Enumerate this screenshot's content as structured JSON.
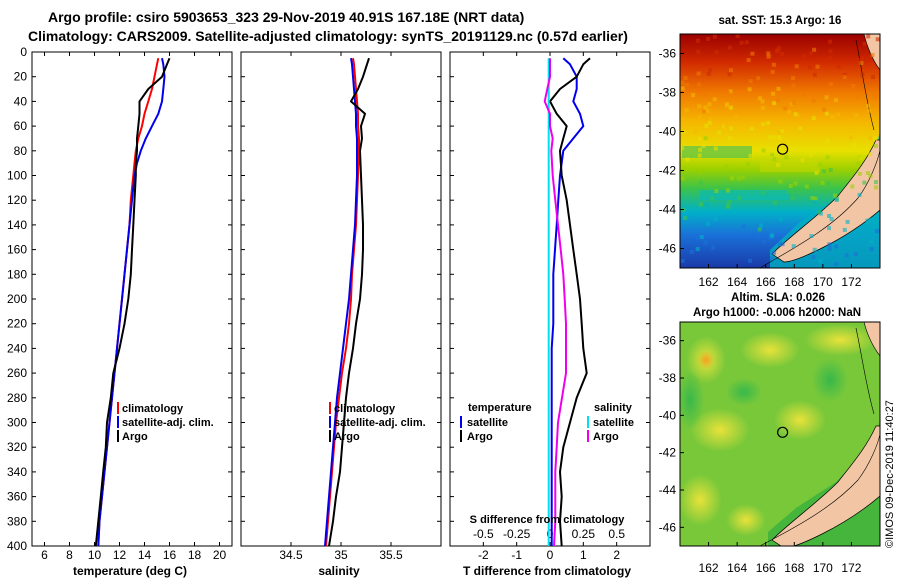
{
  "title": {
    "line1": "Argo profile: csiro 5903653_323 29-Nov-2019 40.91S 167.18E (NRT data)",
    "line2": "Climatology: CARS2009. Satellite-adjusted climatology: synTS_20191129.nc (0.57d earlier)"
  },
  "credit": "©IMOS 09-Dec-2019 11:40:27",
  "colors": {
    "climatology": "#ff0000",
    "satellite": "#0000ee",
    "argo": "#000000",
    "sal_satellite": "#00e0ee",
    "sal_argo": "#ee00ee",
    "land": "#f2c6a4"
  },
  "chart_data": [
    {
      "type": "line",
      "name": "temperature",
      "xlabel": "temperature (deg C)",
      "xlim": [
        5,
        21
      ],
      "ylim": [
        0,
        400
      ],
      "xticks": [
        "6",
        "8",
        "10",
        "12",
        "14",
        "16",
        "18",
        "20"
      ],
      "xtick_values": [
        6,
        8,
        10,
        12,
        14,
        16,
        18,
        20
      ],
      "yticks": [
        "0",
        "20",
        "40",
        "60",
        "80",
        "100",
        "120",
        "140",
        "160",
        "180",
        "200",
        "220",
        "240",
        "260",
        "280",
        "300",
        "320",
        "340",
        "360",
        "380",
        "400"
      ],
      "legend": [
        "climatology",
        "satellite-adj. clim.",
        "Argo"
      ],
      "depth": [
        5,
        10,
        20,
        30,
        40,
        50,
        60,
        70,
        80,
        90,
        100,
        120,
        140,
        160,
        180,
        200,
        220,
        240,
        260,
        280,
        300,
        320,
        340,
        360,
        380,
        400
      ],
      "series": [
        {
          "name": "climatology",
          "color": "#ff0000",
          "values": [
            15.1,
            15.0,
            14.8,
            14.6,
            14.3,
            14.0,
            13.8,
            13.5,
            13.3,
            13.2,
            13.1,
            12.9,
            12.8,
            12.6,
            12.4,
            12.2,
            12.0,
            11.8,
            11.6,
            11.4,
            11.2,
            11.0,
            10.8,
            10.6,
            10.4,
            10.3
          ]
        },
        {
          "name": "satellite-adj. clim.",
          "color": "#0000ee",
          "values": [
            15.4,
            15.5,
            15.6,
            15.5,
            15.4,
            15.1,
            14.6,
            14.1,
            13.7,
            13.4,
            13.2,
            13.0,
            12.8,
            12.6,
            12.4,
            12.2,
            12.0,
            11.8,
            11.6,
            11.4,
            11.2,
            11.0,
            10.8,
            10.6,
            10.4,
            10.3
          ]
        },
        {
          "name": "Argo",
          "color": "#000000",
          "values": [
            16.0,
            15.8,
            15.4,
            14.3,
            13.6,
            13.6,
            13.5,
            13.4,
            13.4,
            13.3,
            13.3,
            13.2,
            13.1,
            13.0,
            12.9,
            12.7,
            12.4,
            12.0,
            11.5,
            11.3,
            11.0,
            10.9,
            10.7,
            10.5,
            10.3,
            10.1
          ]
        }
      ]
    },
    {
      "type": "line",
      "name": "salinity",
      "xlabel": "salinity",
      "xlim": [
        34.0,
        36.0
      ],
      "ylim": [
        0,
        400
      ],
      "xticks": [
        "34.5",
        "35",
        "35.5"
      ],
      "xtick_values": [
        34.5,
        35.0,
        35.5
      ],
      "legend": [
        "climatology",
        "satellite-adj. clim.",
        "Argo"
      ],
      "depth": [
        5,
        10,
        20,
        30,
        40,
        50,
        60,
        70,
        80,
        100,
        120,
        140,
        160,
        180,
        200,
        220,
        240,
        260,
        280,
        300,
        320,
        340,
        360,
        380,
        400
      ],
      "series": [
        {
          "name": "climatology",
          "color": "#ff0000",
          "values": [
            35.12,
            35.13,
            35.14,
            35.15,
            35.16,
            35.17,
            35.17,
            35.18,
            35.18,
            35.17,
            35.16,
            35.15,
            35.13,
            35.11,
            35.1,
            35.08,
            35.05,
            35.01,
            34.98,
            34.95,
            34.93,
            34.91,
            34.89,
            34.87,
            34.85
          ]
        },
        {
          "name": "satellite-adj. clim.",
          "color": "#0000ee",
          "values": [
            35.1,
            35.11,
            35.12,
            35.13,
            35.14,
            35.15,
            35.15,
            35.16,
            35.16,
            35.16,
            35.15,
            35.14,
            35.12,
            35.1,
            35.08,
            35.05,
            35.02,
            34.99,
            34.96,
            34.94,
            34.92,
            34.9,
            34.88,
            34.86,
            34.84
          ]
        },
        {
          "name": "Argo",
          "color": "#000000",
          "values": [
            35.28,
            35.26,
            35.22,
            35.17,
            35.1,
            35.24,
            35.2,
            35.21,
            35.19,
            35.2,
            35.21,
            35.22,
            35.22,
            35.21,
            35.19,
            35.15,
            35.12,
            35.08,
            35.05,
            35.03,
            35.01,
            34.99,
            34.95,
            34.92,
            34.88
          ]
        }
      ]
    },
    {
      "type": "line",
      "name": "difference",
      "xlabel": "T difference from climatology",
      "xlabel_top": "S difference from climatology",
      "xlim": [
        -3,
        3
      ],
      "ylim": [
        0,
        400
      ],
      "xticks": [
        "-2",
        "-1",
        "0",
        "1",
        "2"
      ],
      "xtick_values": [
        -2,
        -1,
        0,
        1,
        2
      ],
      "xticks_top": [
        "-0.5",
        "-0.25",
        "0",
        "0.25",
        "0.5"
      ],
      "xtick_values_top": [
        -0.5,
        -0.25,
        0,
        0.25,
        0.5
      ],
      "legend_temperature": [
        "temperature",
        "satellite",
        "Argo"
      ],
      "legend_salinity": [
        "salinity",
        "satellite",
        "Argo"
      ],
      "depth": [
        5,
        10,
        20,
        30,
        40,
        50,
        60,
        70,
        80,
        100,
        120,
        140,
        160,
        180,
        200,
        220,
        240,
        260,
        280,
        300,
        320,
        340,
        360,
        380,
        400
      ],
      "series": [
        {
          "name": "T satellite",
          "color": "#0000ee",
          "values": [
            0.4,
            0.6,
            0.8,
            0.8,
            0.7,
            0.9,
            1.0,
            0.7,
            0.4,
            0.3,
            0.25,
            0.2,
            0.15,
            0.1,
            0.1,
            0.1,
            0.05,
            0.05,
            0.05,
            0.05,
            0.05,
            0.05,
            0.05,
            0.05,
            0.05
          ]
        },
        {
          "name": "T Argo",
          "color": "#000000",
          "values": [
            1.2,
            1.0,
            0.8,
            0.3,
            0.0,
            0.2,
            0.5,
            0.4,
            0.3,
            0.35,
            0.5,
            0.6,
            0.7,
            0.8,
            0.9,
            0.95,
            1.0,
            1.1,
            0.8,
            0.6,
            0.4,
            0.3,
            0.35,
            0.3,
            0.35
          ]
        },
        {
          "name": "S satellite",
          "color": "#00e0ee",
          "values": [
            -0.01,
            -0.01,
            -0.01,
            -0.01,
            -0.01,
            -0.01,
            -0.01,
            -0.01,
            -0.01,
            -0.01,
            -0.01,
            -0.01,
            -0.01,
            -0.01,
            -0.01,
            -0.01,
            -0.01,
            -0.01,
            -0.01,
            -0.01,
            -0.01,
            -0.01,
            -0.01,
            -0.01,
            -0.01
          ]
        },
        {
          "name": "S Argo",
          "color": "#ee00ee",
          "values": [
            0.0,
            0.0,
            0.0,
            -0.02,
            -0.04,
            0.0,
            0.0,
            0.02,
            0.01,
            0.02,
            0.04,
            0.06,
            0.08,
            0.1,
            0.11,
            0.12,
            0.12,
            0.12,
            0.09,
            0.06,
            0.05,
            0.04,
            0.04,
            0.04,
            0.03
          ]
        }
      ]
    },
    {
      "type": "heatmap",
      "name": "sst_map",
      "title": "sat. SST: 15.3 Argo: 16",
      "xlim": [
        160,
        174
      ],
      "ylim": [
        -47,
        -35
      ],
      "xticks": [
        "162",
        "164",
        "166",
        "168",
        "170",
        "172"
      ],
      "xtick_values": [
        162,
        164,
        166,
        168,
        170,
        172
      ],
      "yticks": [
        "-36",
        "-38",
        "-40",
        "-42",
        "-44",
        "-46"
      ],
      "ytick_values": [
        -36,
        -38,
        -40,
        -42,
        -44,
        -46
      ],
      "argo_position": {
        "lon": 167.18,
        "lat": -40.91
      }
    },
    {
      "type": "heatmap",
      "name": "sla_map",
      "title_line1": "Altim. SLA: 0.026",
      "title_line2": "Argo h1000: -0.006 h2000: NaN",
      "xlim": [
        160,
        174
      ],
      "ylim": [
        -47,
        -35
      ],
      "xticks": [
        "162",
        "164",
        "166",
        "168",
        "170",
        "172"
      ],
      "xtick_values": [
        162,
        164,
        166,
        168,
        170,
        172
      ],
      "yticks": [
        "-36",
        "-38",
        "-40",
        "-42",
        "-44",
        "-46"
      ],
      "ytick_values": [
        -36,
        -38,
        -40,
        -42,
        -44,
        -46
      ],
      "argo_position": {
        "lon": 167.18,
        "lat": -40.91
      }
    }
  ]
}
